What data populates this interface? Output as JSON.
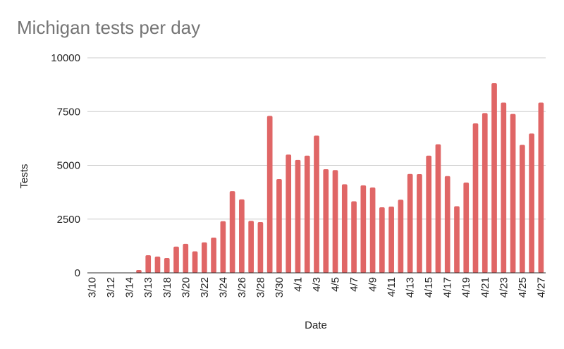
{
  "chart_data": {
    "type": "bar",
    "title": "Michigan tests per day",
    "xlabel": "Date",
    "ylabel": "Tests",
    "ylim": [
      0,
      10000
    ],
    "yticks": [
      0,
      2500,
      5000,
      7500,
      10000
    ],
    "ytick_labels": [
      "0",
      "2500",
      "5000",
      "7500",
      "10000"
    ],
    "grid": true,
    "legend": "none",
    "bar_color": "#e06666",
    "x_tick_labels": [
      "3/10",
      "3/12",
      "3/14",
      "3/13",
      "3/18",
      "3/20",
      "3/22",
      "3/24",
      "3/26",
      "3/28",
      "3/30",
      "4/1",
      "4/3",
      "4/5",
      "4/7",
      "4/9",
      "4/11",
      "4/13",
      "4/15",
      "4/17",
      "4/19",
      "4/21",
      "4/23",
      "4/25",
      "4/27"
    ],
    "values": [
      0,
      0,
      0,
      0,
      0,
      130,
      820,
      760,
      690,
      1220,
      1350,
      1000,
      1420,
      1640,
      2400,
      3800,
      3420,
      2420,
      2360,
      7300,
      4360,
      5500,
      5250,
      5450,
      6380,
      4820,
      4780,
      4120,
      3330,
      4070,
      3970,
      3050,
      3080,
      3400,
      4600,
      4590,
      5450,
      5980,
      4500,
      3100,
      4200,
      6950,
      7430,
      8820,
      7920,
      7390,
      5950,
      6480,
      7920
    ]
  }
}
